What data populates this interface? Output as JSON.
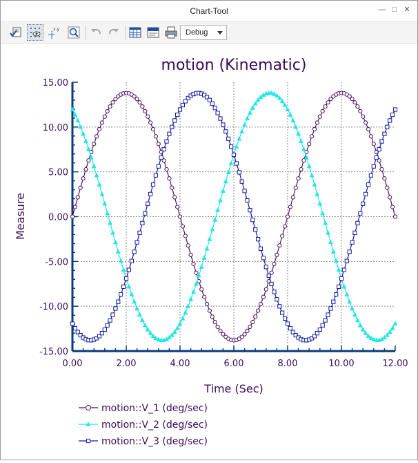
{
  "window": {
    "title": "Chart-Tool"
  },
  "toolbar": {
    "dropdown_value": "Debug"
  },
  "icons": {
    "check": "check-list-icon",
    "grid": "grid-toggle-icon",
    "coords": "xy-coordinates-icon",
    "zoom": "zoom-icon",
    "undo": "undo-icon",
    "redo": "redo-icon",
    "table": "table-icon",
    "text": "text-export-icon",
    "print": "print-icon"
  },
  "colors": {
    "title": "#3a0a5a",
    "axis": "#0a3a7a",
    "v1": "#4b1060",
    "v2": "#23e6e6",
    "v3": "#101aa0"
  },
  "chart_data": {
    "type": "line",
    "title": "motion (Kinematic)",
    "xlabel": "Time (Sec)",
    "ylabel": "Measure",
    "xlim": [
      0,
      12
    ],
    "ylim": [
      -15,
      15
    ],
    "xticks": [
      "0.00",
      "2.00",
      "4.00",
      "6.00",
      "8.00",
      "10.00",
      "12.00"
    ],
    "yticks": [
      "15.00",
      "10.00",
      "5.00",
      "0.00",
      "-5.00",
      "-10.00",
      "-15.00"
    ],
    "grid": true,
    "legend_position": "bottom-left",
    "series": [
      {
        "name": "motion::V_1 (deg/sec)",
        "marker": "circle",
        "amplitude": 13.8,
        "period": 8,
        "phase_deg": 0
      },
      {
        "name": "motion::V_2 (deg/sec)",
        "marker": "triangle",
        "amplitude": 13.8,
        "period": 8,
        "phase_deg": 120
      },
      {
        "name": "motion::V_3 (deg/sec)",
        "marker": "square",
        "amplitude": 13.8,
        "period": 8,
        "phase_deg": 240
      }
    ]
  }
}
